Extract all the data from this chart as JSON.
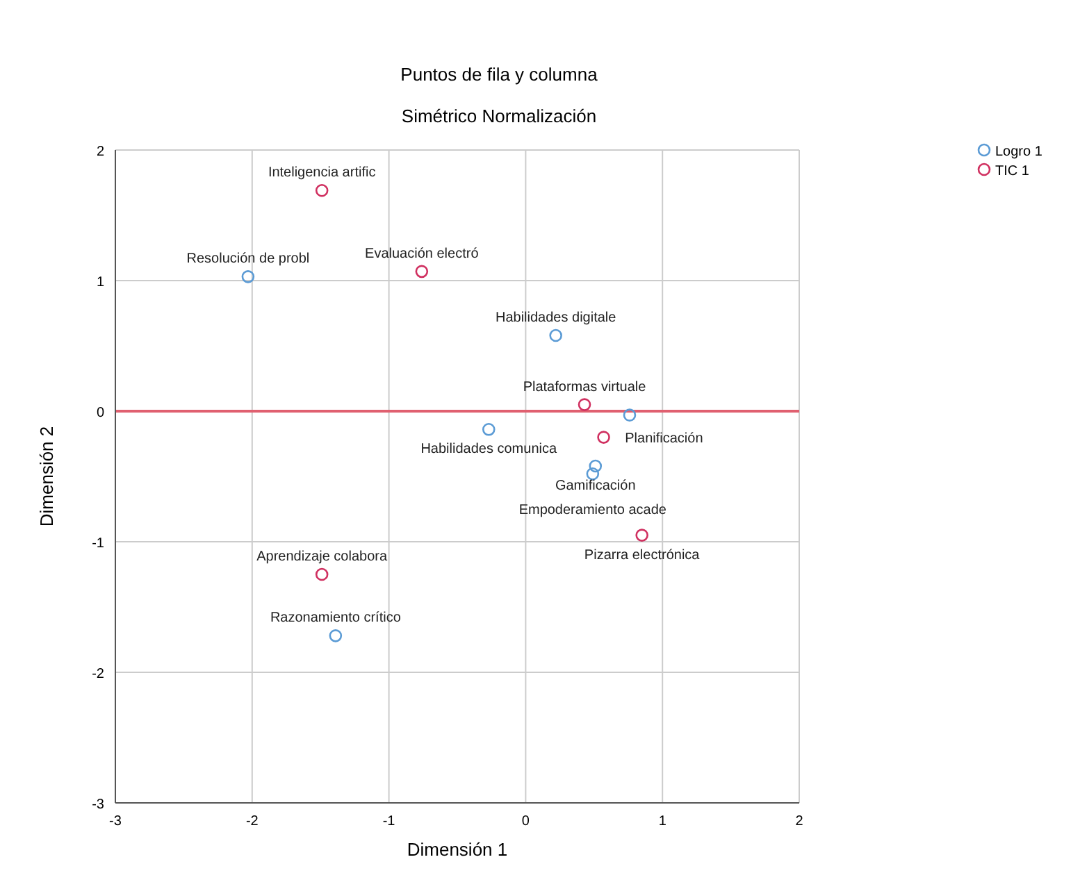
{
  "chart_data": {
    "type": "scatter",
    "title": "Puntos de fila y columna",
    "subtitle": "Simétrico Normalización",
    "xlabel": "Dimensión 1",
    "ylabel": "Dimensión 2",
    "xlim": [
      -3,
      2
    ],
    "xticks": [
      -3,
      -2,
      -1,
      0,
      1,
      2
    ],
    "ylim": [
      -3,
      2
    ],
    "yticks": [
      -3,
      -2,
      -1,
      0,
      1,
      2
    ],
    "grid": true,
    "legend": "top right",
    "marker": "circle",
    "ref_lines": [
      {
        "axis": "y",
        "value": 0,
        "label": null,
        "color": "#e06070"
      }
    ],
    "series": [
      {
        "name": "Logro 1",
        "color": "#5b9bd5",
        "x": [
          -2.03,
          0.22,
          -0.27,
          0.76,
          0.51,
          0.49,
          -1.39
        ],
        "values": [
          1.03,
          0.58,
          -0.14,
          -0.03,
          -0.42,
          -0.48,
          -1.72
        ]
      },
      {
        "name": "TIC 1",
        "color": "#d03060",
        "x": [
          -1.49,
          -0.76,
          0.43,
          0.57,
          0.85,
          -1.49
        ],
        "values": [
          1.69,
          1.07,
          0.05,
          -0.2,
          -0.95,
          -1.25
        ]
      }
    ],
    "annotations": [
      {
        "text": "Resolución de probl",
        "x": -2.03,
        "y": 1.03
      },
      {
        "text": "Habilidades digitale",
        "x": 0.22,
        "y": 0.58
      },
      {
        "text": "Habilidades comunica",
        "x": -0.27,
        "y": -0.14
      },
      {
        "text": "Gamificación",
        "x": 0.51,
        "y": -0.42
      },
      {
        "text": "Empoderamiento acade",
        "x": 0.49,
        "y": -0.48
      },
      {
        "text": "Razonamiento crítico",
        "x": -1.39,
        "y": -1.72
      },
      {
        "text": "Inteligencia artific",
        "x": -1.49,
        "y": 1.69
      },
      {
        "text": "Evaluación electró",
        "x": -0.76,
        "y": 1.07
      },
      {
        "text": "Plataformas virtuale",
        "x": 0.43,
        "y": 0.05
      },
      {
        "text": "Planificación",
        "x": 0.57,
        "y": -0.2
      },
      {
        "text": "Pizarra electrónica",
        "x": 0.85,
        "y": -0.95
      },
      {
        "text": "Aprendizaje colabora",
        "x": -1.49,
        "y": -1.25
      }
    ]
  }
}
